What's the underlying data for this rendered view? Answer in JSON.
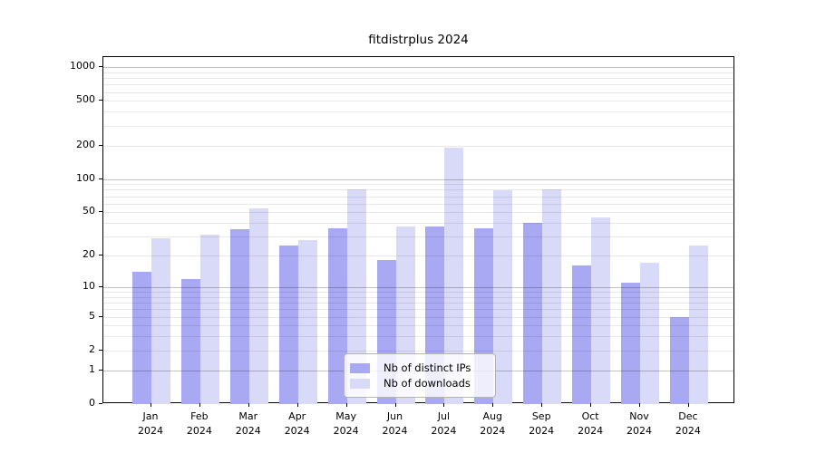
{
  "chart_data": {
    "type": "bar",
    "title": "fitdistrplus 2024",
    "scale": "log1p",
    "grid": true,
    "categories": [
      "Jan",
      "Feb",
      "Mar",
      "Apr",
      "May",
      "Jun",
      "Jul",
      "Aug",
      "Sep",
      "Oct",
      "Nov",
      "Dec"
    ],
    "year_label": "2024",
    "series": [
      {
        "name": "Nb of distinct IPs",
        "color": "#a8a8f3",
        "values": [
          14,
          12,
          35,
          25,
          36,
          18,
          37,
          36,
          40,
          16,
          11,
          5
        ]
      },
      {
        "name": "Nb of downloads",
        "color": "#d9d9f8",
        "values": [
          29,
          31,
          54,
          28,
          80,
          37,
          192,
          79,
          81,
          45,
          17,
          25
        ]
      }
    ],
    "yticks": [
      0,
      1,
      2,
      5,
      10,
      20,
      50,
      100,
      200,
      500,
      1000
    ],
    "ylim": [
      0,
      1229
    ],
    "xlabel": "",
    "ylabel": "",
    "legend_position": "bottom-center",
    "colors": {
      "bar_distinct_ips": "#a8a8f3",
      "bar_downloads": "#d9d9f8",
      "grid_major": "#c2c2c2",
      "grid_minor": "#e8e8e8",
      "axis": "#000000",
      "background": "#ffffff"
    }
  }
}
